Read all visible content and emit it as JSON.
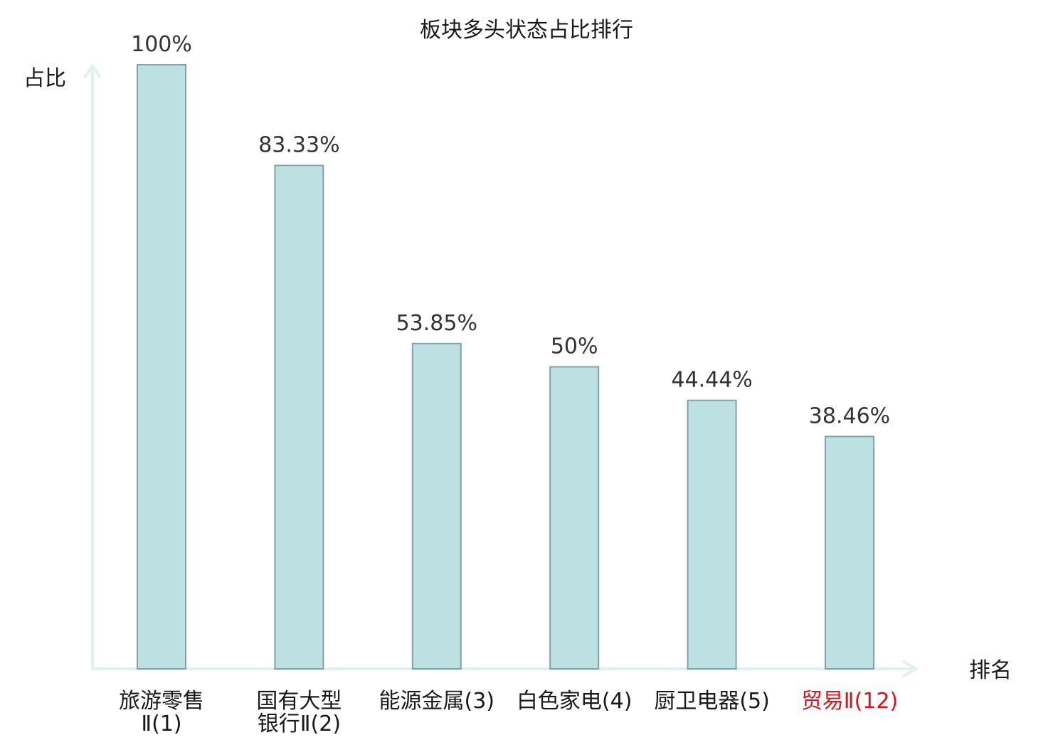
{
  "chart_data": {
    "type": "bar",
    "title": "板块多头状态占比排行",
    "ylabel": "占比",
    "xlabel": "排名",
    "ylim": [
      0,
      100
    ],
    "grid": false,
    "categories": [
      {
        "lines": [
          "旅游零售",
          "Ⅱ(1)"
        ],
        "highlight": false
      },
      {
        "lines": [
          "国有大型",
          "银行Ⅱ(2)"
        ],
        "highlight": false
      },
      {
        "lines": [
          "能源金属(3)"
        ],
        "highlight": false
      },
      {
        "lines": [
          "白色家电(4)"
        ],
        "highlight": false
      },
      {
        "lines": [
          "厨卫电器(5)"
        ],
        "highlight": false
      },
      {
        "lines": [
          "贸易Ⅱ(12)"
        ],
        "highlight": true
      }
    ],
    "values": [
      100,
      83.33,
      53.85,
      50,
      44.44,
      38.46
    ],
    "value_labels": [
      "100%",
      "83.33%",
      "53.85%",
      "50%",
      "44.44%",
      "38.46%"
    ]
  },
  "colors": {
    "bar_fill": "#bde0e3",
    "bar_stroke": "#7fa3a7",
    "axis": "#e0f2f0",
    "label_text": "#1a1a1a",
    "highlight_text": "#d9141b"
  }
}
